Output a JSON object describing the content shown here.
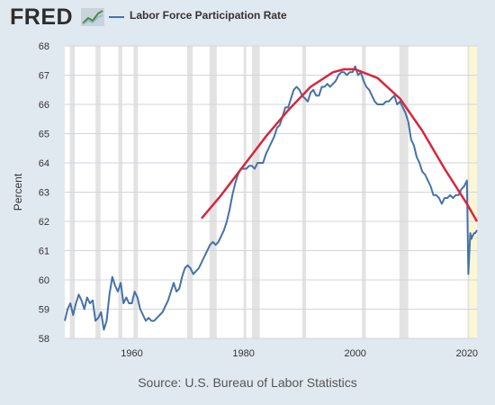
{
  "header": {
    "logo_text": "FRED",
    "logo_icon": "line-chart-icon",
    "legend_label": "Labor Force Participation Rate"
  },
  "source": "Source: U.S. Bureau of Labor Statistics",
  "colors": {
    "series": "#4572a7",
    "trend": "#d7263d",
    "recession": "#e3e3e3",
    "latest_highlight": "#fbf7d5",
    "background": "#e1e9f0",
    "plot_background": "#ffffff",
    "grid": "#cfd6dd"
  },
  "chart_data": {
    "type": "line",
    "ylabel": "Percent",
    "xlim": [
      1948,
      2021.8
    ],
    "ylim": [
      58,
      68
    ],
    "x_ticks": [
      1960,
      1980,
      2000,
      2020
    ],
    "y_ticks": [
      58,
      59,
      60,
      61,
      62,
      63,
      64,
      65,
      66,
      67,
      68
    ],
    "grid": "horizontal",
    "recessions": [
      [
        1948.9,
        1949.8
      ],
      [
        1953.5,
        1954.4
      ],
      [
        1957.6,
        1958.3
      ],
      [
        1960.3,
        1961.1
      ],
      [
        1969.9,
        1970.9
      ],
      [
        1973.9,
        1975.2
      ],
      [
        1980.0,
        1980.5
      ],
      [
        1981.5,
        1982.9
      ],
      [
        1990.5,
        1991.2
      ],
      [
        2001.2,
        2001.9
      ],
      [
        2007.9,
        2009.5
      ],
      [
        2020.1,
        2020.4
      ]
    ],
    "latest_highlight": [
      2020.4,
      2021.8
    ],
    "series": [
      {
        "name": "Labor Force Participation Rate",
        "points": [
          [
            1948.0,
            58.6
          ],
          [
            1948.5,
            59.0
          ],
          [
            1949.0,
            59.2
          ],
          [
            1949.5,
            58.8
          ],
          [
            1950.0,
            59.2
          ],
          [
            1950.5,
            59.5
          ],
          [
            1951.0,
            59.3
          ],
          [
            1951.5,
            59.0
          ],
          [
            1952.0,
            59.4
          ],
          [
            1952.5,
            59.2
          ],
          [
            1953.0,
            59.3
          ],
          [
            1953.5,
            58.6
          ],
          [
            1954.0,
            58.7
          ],
          [
            1954.5,
            58.9
          ],
          [
            1955.0,
            58.3
          ],
          [
            1955.5,
            58.6
          ],
          [
            1956.0,
            59.5
          ],
          [
            1956.5,
            60.1
          ],
          [
            1957.0,
            59.8
          ],
          [
            1957.5,
            59.6
          ],
          [
            1958.0,
            59.9
          ],
          [
            1958.5,
            59.2
          ],
          [
            1959.0,
            59.4
          ],
          [
            1959.5,
            59.2
          ],
          [
            1960.0,
            59.2
          ],
          [
            1960.5,
            59.6
          ],
          [
            1961.0,
            59.4
          ],
          [
            1961.5,
            59.0
          ],
          [
            1962.0,
            58.8
          ],
          [
            1962.5,
            58.6
          ],
          [
            1963.0,
            58.7
          ],
          [
            1963.5,
            58.6
          ],
          [
            1964.0,
            58.6
          ],
          [
            1964.5,
            58.7
          ],
          [
            1965.0,
            58.8
          ],
          [
            1965.5,
            58.9
          ],
          [
            1966.0,
            59.1
          ],
          [
            1966.5,
            59.3
          ],
          [
            1967.0,
            59.6
          ],
          [
            1967.5,
            59.9
          ],
          [
            1968.0,
            59.6
          ],
          [
            1968.5,
            59.7
          ],
          [
            1969.0,
            60.1
          ],
          [
            1969.5,
            60.4
          ],
          [
            1970.0,
            60.5
          ],
          [
            1970.5,
            60.4
          ],
          [
            1971.0,
            60.2
          ],
          [
            1971.5,
            60.3
          ],
          [
            1972.0,
            60.4
          ],
          [
            1972.5,
            60.6
          ],
          [
            1973.0,
            60.8
          ],
          [
            1973.5,
            61.0
          ],
          [
            1974.0,
            61.2
          ],
          [
            1974.5,
            61.3
          ],
          [
            1975.0,
            61.2
          ],
          [
            1975.5,
            61.3
          ],
          [
            1976.0,
            61.5
          ],
          [
            1976.5,
            61.7
          ],
          [
            1977.0,
            62.0
          ],
          [
            1977.5,
            62.4
          ],
          [
            1978.0,
            62.9
          ],
          [
            1978.5,
            63.3
          ],
          [
            1979.0,
            63.6
          ],
          [
            1979.5,
            63.8
          ],
          [
            1980.0,
            63.8
          ],
          [
            1980.5,
            63.8
          ],
          [
            1981.0,
            63.9
          ],
          [
            1981.5,
            63.9
          ],
          [
            1982.0,
            63.8
          ],
          [
            1982.5,
            64.0
          ],
          [
            1983.0,
            64.0
          ],
          [
            1983.5,
            64.0
          ],
          [
            1984.0,
            64.3
          ],
          [
            1984.5,
            64.5
          ],
          [
            1985.0,
            64.7
          ],
          [
            1985.5,
            64.9
          ],
          [
            1986.0,
            65.2
          ],
          [
            1986.5,
            65.3
          ],
          [
            1987.0,
            65.6
          ],
          [
            1987.5,
            65.9
          ],
          [
            1988.0,
            65.9
          ],
          [
            1988.5,
            66.2
          ],
          [
            1989.0,
            66.5
          ],
          [
            1989.5,
            66.6
          ],
          [
            1990.0,
            66.5
          ],
          [
            1990.5,
            66.3
          ],
          [
            1991.0,
            66.2
          ],
          [
            1991.5,
            66.1
          ],
          [
            1992.0,
            66.4
          ],
          [
            1992.5,
            66.5
          ],
          [
            1993.0,
            66.3
          ],
          [
            1993.5,
            66.3
          ],
          [
            1994.0,
            66.6
          ],
          [
            1994.5,
            66.6
          ],
          [
            1995.0,
            66.7
          ],
          [
            1995.5,
            66.6
          ],
          [
            1996.0,
            66.7
          ],
          [
            1996.5,
            66.8
          ],
          [
            1997.0,
            67.0
          ],
          [
            1997.5,
            67.1
          ],
          [
            1998.0,
            67.1
          ],
          [
            1998.5,
            67.0
          ],
          [
            1999.0,
            67.1
          ],
          [
            1999.5,
            67.1
          ],
          [
            2000.0,
            67.3
          ],
          [
            2000.5,
            67.0
          ],
          [
            2001.0,
            67.1
          ],
          [
            2001.5,
            66.8
          ],
          [
            2002.0,
            66.6
          ],
          [
            2002.5,
            66.5
          ],
          [
            2003.0,
            66.3
          ],
          [
            2003.5,
            66.1
          ],
          [
            2004.0,
            66.0
          ],
          [
            2004.5,
            66.0
          ],
          [
            2005.0,
            66.0
          ],
          [
            2005.5,
            66.1
          ],
          [
            2006.0,
            66.1
          ],
          [
            2006.5,
            66.2
          ],
          [
            2007.0,
            66.3
          ],
          [
            2007.5,
            66.0
          ],
          [
            2008.0,
            66.1
          ],
          [
            2008.5,
            65.9
          ],
          [
            2009.0,
            65.7
          ],
          [
            2009.5,
            65.4
          ],
          [
            2010.0,
            64.8
          ],
          [
            2010.5,
            64.6
          ],
          [
            2011.0,
            64.2
          ],
          [
            2011.5,
            64.0
          ],
          [
            2012.0,
            63.7
          ],
          [
            2012.5,
            63.6
          ],
          [
            2013.0,
            63.4
          ],
          [
            2013.5,
            63.2
          ],
          [
            2014.0,
            62.9
          ],
          [
            2014.5,
            62.9
          ],
          [
            2015.0,
            62.8
          ],
          [
            2015.5,
            62.6
          ],
          [
            2016.0,
            62.8
          ],
          [
            2016.5,
            62.8
          ],
          [
            2017.0,
            62.9
          ],
          [
            2017.5,
            62.8
          ],
          [
            2018.0,
            62.9
          ],
          [
            2018.5,
            62.9
          ],
          [
            2019.0,
            63.1
          ],
          [
            2019.5,
            63.2
          ],
          [
            2020.0,
            63.4
          ],
          [
            2020.25,
            60.2
          ],
          [
            2020.4,
            60.8
          ],
          [
            2020.6,
            61.6
          ],
          [
            2020.8,
            61.4
          ],
          [
            2021.0,
            61.5
          ],
          [
            2021.3,
            61.6
          ],
          [
            2021.5,
            61.6
          ],
          [
            2021.8,
            61.7
          ]
        ]
      },
      {
        "name": "",
        "points": [
          [
            1972.5,
            62.1
          ],
          [
            1976.0,
            62.9
          ],
          [
            1980.0,
            63.9
          ],
          [
            1984.0,
            64.9
          ],
          [
            1988.0,
            65.8
          ],
          [
            1992.0,
            66.6
          ],
          [
            1996.0,
            67.1
          ],
          [
            1998.0,
            67.2
          ],
          [
            2000.0,
            67.2
          ],
          [
            2004.0,
            66.9
          ],
          [
            2008.0,
            66.2
          ],
          [
            2012.0,
            65.1
          ],
          [
            2016.0,
            63.8
          ],
          [
            2020.0,
            62.6
          ],
          [
            2021.8,
            62.0
          ]
        ]
      }
    ]
  }
}
